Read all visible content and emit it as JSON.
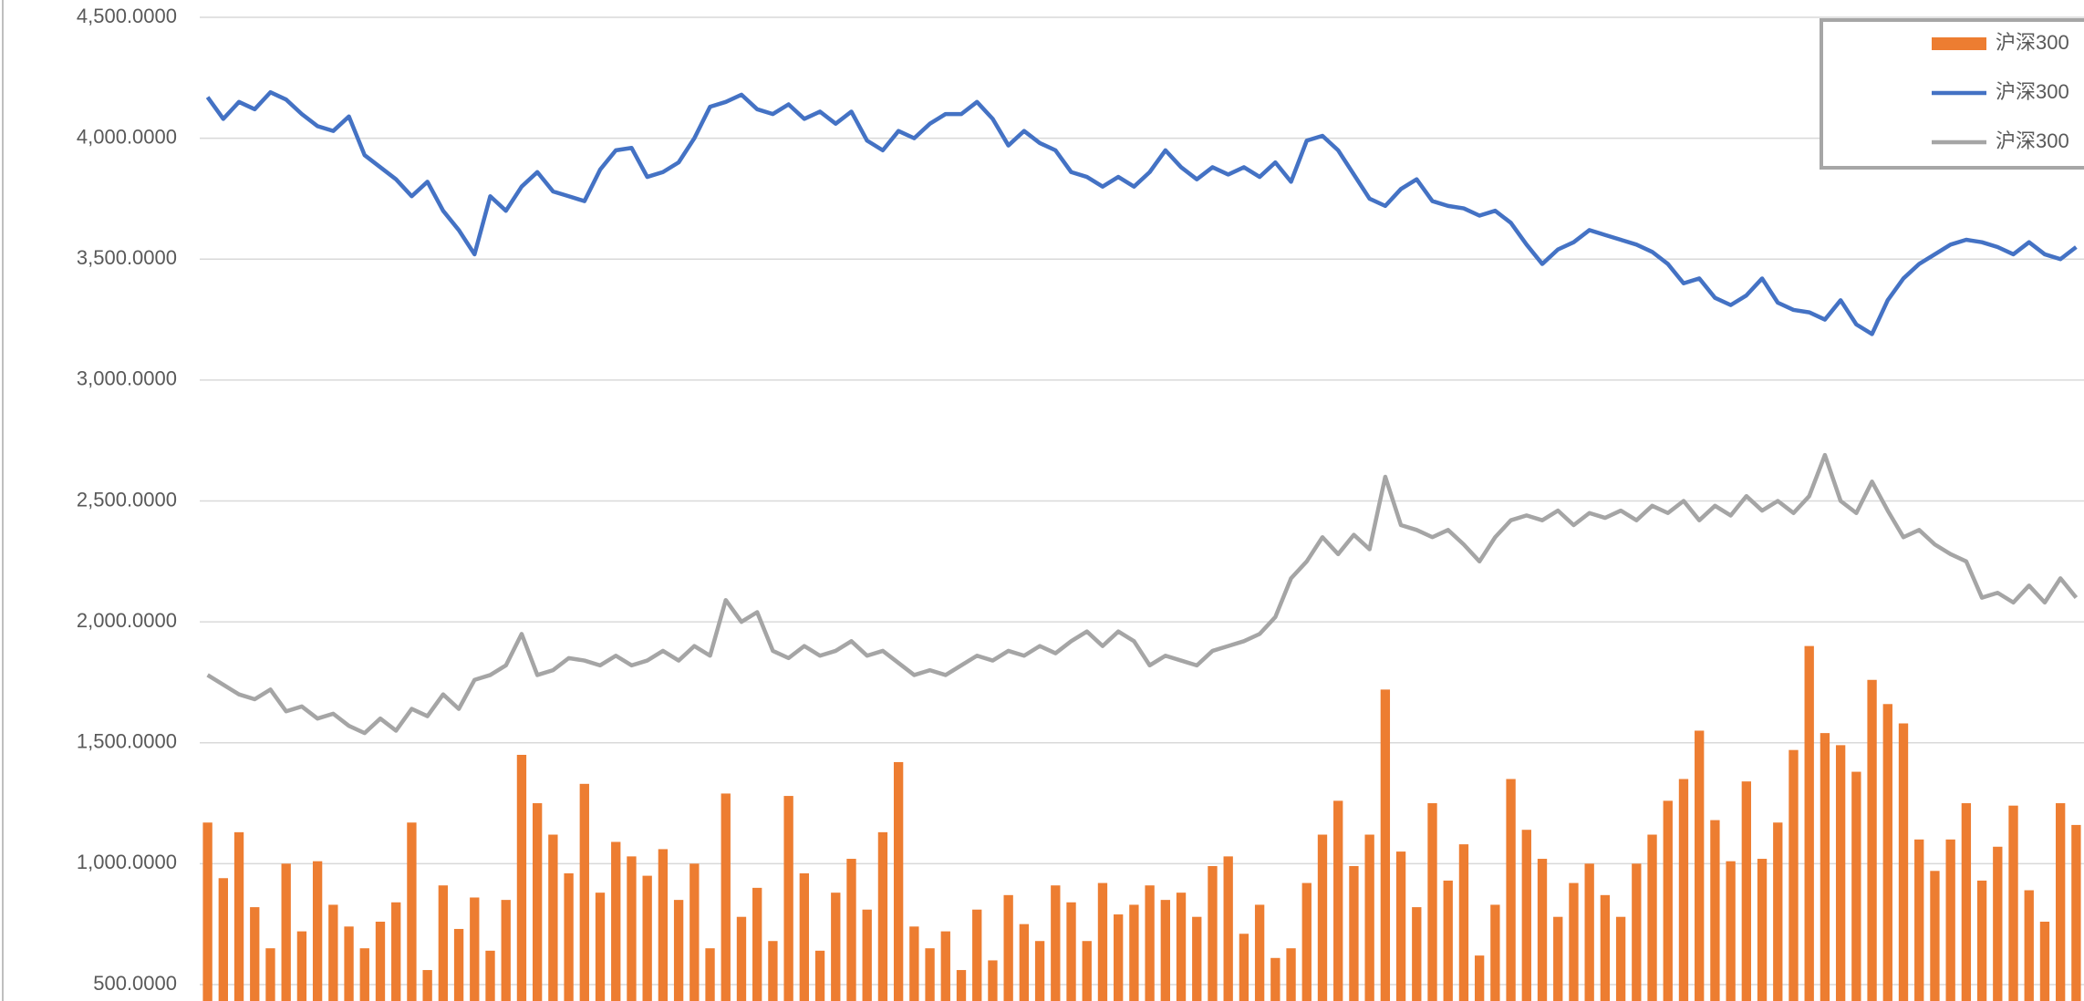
{
  "chart_data": {
    "type": "bar",
    "categories": [
      null,
      null,
      null,
      null,
      null,
      null,
      null,
      null,
      null,
      null,
      null,
      null,
      null,
      null,
      null,
      null,
      null,
      null,
      null,
      null,
      null,
      null,
      null,
      null,
      null,
      null,
      null,
      null,
      null,
      null,
      null,
      null,
      null,
      null,
      null,
      null,
      null,
      null,
      null,
      null,
      null,
      null,
      null,
      null,
      null,
      null,
      null,
      null,
      null,
      null,
      null,
      null,
      null,
      null,
      null,
      null,
      null,
      null,
      null,
      null,
      null,
      null,
      null,
      null,
      null,
      null,
      null,
      null,
      null,
      null,
      null,
      null,
      null,
      null,
      null,
      null,
      null,
      null,
      null,
      null,
      null,
      null,
      null,
      null,
      null,
      null,
      null,
      null,
      null,
      null,
      null,
      null,
      null,
      null,
      null,
      null,
      null,
      null,
      null,
      null,
      null,
      null,
      null,
      null,
      null,
      null,
      null,
      null,
      null,
      null,
      null,
      null,
      null,
      null,
      null,
      null,
      null,
      null,
      null,
      null
    ],
    "series": [
      {
        "name": "沪深300",
        "type": "bar",
        "color": "#ed7d31",
        "values": [
          1170,
          940,
          1130,
          820,
          650,
          1000,
          720,
          1010,
          830,
          740,
          650,
          760,
          840,
          1170,
          560,
          910,
          730,
          860,
          640,
          850,
          1450,
          1250,
          1120,
          960,
          1330,
          880,
          1090,
          1030,
          950,
          1060,
          850,
          1000,
          650,
          1290,
          780,
          900,
          680,
          1280,
          960,
          640,
          880,
          1020,
          810,
          1130,
          1420,
          740,
          650,
          720,
          560,
          810,
          600,
          870,
          750,
          680,
          910,
          840,
          680,
          920,
          790,
          830,
          910,
          850,
          880,
          780,
          990,
          1030,
          710,
          830,
          610,
          650,
          920,
          1120,
          1260,
          990,
          1120,
          1720,
          1050,
          820,
          1250,
          930,
          1080,
          620,
          830,
          1350,
          1140,
          1020,
          780,
          920,
          1000,
          870,
          780,
          1000,
          1120,
          1260,
          1350,
          1550,
          1180,
          1010,
          1340,
          1020,
          1170,
          1470,
          1900,
          1540,
          1490,
          1380,
          1760,
          1660,
          1580,
          1100,
          970,
          1100,
          1250,
          930,
          1070,
          1240,
          890,
          760,
          1250,
          1160
        ]
      },
      {
        "name": "沪深300",
        "type": "line",
        "color": "#4472c4",
        "values": [
          4170,
          4080,
          4150,
          4120,
          4190,
          4160,
          4100,
          4050,
          4030,
          4090,
          3930,
          3880,
          3830,
          3760,
          3820,
          3700,
          3620,
          3520,
          3760,
          3700,
          3800,
          3860,
          3780,
          3760,
          3740,
          3870,
          3950,
          3960,
          3840,
          3860,
          3900,
          4000,
          4130,
          4150,
          4180,
          4120,
          4100,
          4140,
          4080,
          4110,
          4060,
          4110,
          3990,
          3950,
          4030,
          4000,
          4060,
          4100,
          4100,
          4150,
          4080,
          3970,
          4030,
          3980,
          3950,
          3860,
          3840,
          3800,
          3840,
          3800,
          3860,
          3950,
          3880,
          3830,
          3880,
          3850,
          3880,
          3840,
          3900,
          3820,
          3990,
          4010,
          3950,
          3850,
          3750,
          3720,
          3790,
          3830,
          3740,
          3720,
          3710,
          3680,
          3700,
          3650,
          3560,
          3480,
          3540,
          3570,
          3620,
          3600,
          3580,
          3560,
          3530,
          3480,
          3400,
          3420,
          3340,
          3310,
          3350,
          3420,
          3320,
          3290,
          3280,
          3250,
          3330,
          3230,
          3190,
          3330,
          3420,
          3480,
          3520,
          3560,
          3580,
          3570,
          3550,
          3520,
          3570,
          3520,
          3500,
          3550
        ]
      },
      {
        "name": "沪深300",
        "type": "line",
        "color": "#a5a5a5",
        "values": [
          1780,
          1740,
          1700,
          1680,
          1720,
          1630,
          1650,
          1600,
          1620,
          1570,
          1540,
          1600,
          1550,
          1640,
          1610,
          1700,
          1640,
          1760,
          1780,
          1820,
          1950,
          1780,
          1800,
          1850,
          1840,
          1820,
          1860,
          1820,
          1840,
          1880,
          1840,
          1900,
          1860,
          2090,
          2000,
          2040,
          1880,
          1850,
          1900,
          1860,
          1880,
          1920,
          1860,
          1880,
          1830,
          1780,
          1800,
          1780,
          1820,
          1860,
          1840,
          1880,
          1860,
          1900,
          1870,
          1920,
          1960,
          1900,
          1960,
          1920,
          1820,
          1860,
          1840,
          1820,
          1880,
          1900,
          1920,
          1950,
          2020,
          2180,
          2250,
          2350,
          2280,
          2360,
          2300,
          2600,
          2400,
          2380,
          2350,
          2380,
          2320,
          2250,
          2350,
          2420,
          2440,
          2420,
          2460,
          2400,
          2450,
          2430,
          2460,
          2420,
          2480,
          2450,
          2500,
          2420,
          2480,
          2440,
          2520,
          2460,
          2500,
          2450,
          2520,
          2690,
          2500,
          2450,
          2580,
          2460,
          2350,
          2380,
          2320,
          2280,
          2250,
          2100,
          2120,
          2080,
          2150,
          2080,
          2180,
          2100
        ]
      }
    ],
    "ylim": [
      432,
      4500
    ],
    "yticks": [
      {
        "value": 500,
        "label": "500.0000"
      },
      {
        "value": 1000,
        "label": "1,000.0000"
      },
      {
        "value": 1500,
        "label": "1,500.0000"
      },
      {
        "value": 2000,
        "label": "2,000.0000"
      },
      {
        "value": 2500,
        "label": "2,500.0000"
      },
      {
        "value": 3000,
        "label": "3,000.0000"
      },
      {
        "value": 3500,
        "label": "3,500.0000"
      },
      {
        "value": 4000,
        "label": "4,000.0000"
      },
      {
        "value": 4500,
        "label": "4,500.0000"
      }
    ],
    "grid": true,
    "legend": "top-right"
  }
}
